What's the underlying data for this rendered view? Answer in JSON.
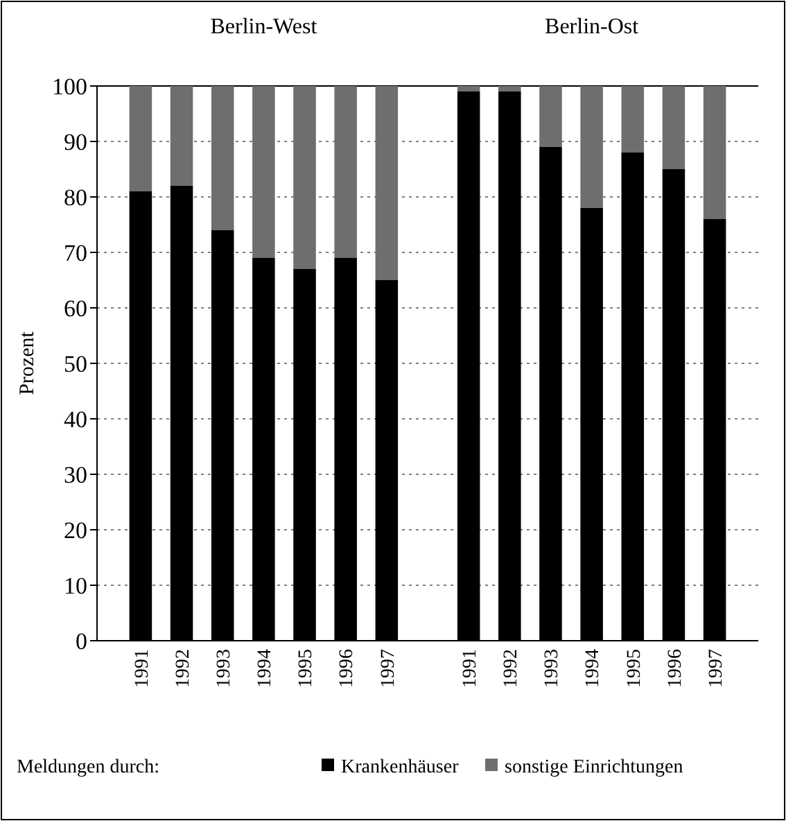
{
  "chart_data": {
    "type": "bar",
    "stacked": true,
    "ylabel": "Prozent",
    "legend_title": "Meldungen durch:",
    "legend": "bottom",
    "grid": "y",
    "categories": [
      "1991",
      "1992",
      "1993",
      "1994",
      "1995",
      "1996",
      "1997",
      null,
      "1991",
      "1992",
      "1993",
      "1994",
      "1995",
      "1996",
      "1997"
    ],
    "series": [
      {
        "name": "Krankenhäuser",
        "color": "#000000",
        "values": [
          81,
          82,
          74,
          69,
          67,
          69,
          65,
          null,
          99,
          99,
          89,
          78,
          88,
          85,
          76
        ]
      },
      {
        "name": "sonstige Einrichtungen",
        "color": "#6e6e6e",
        "values": [
          19,
          18,
          26,
          31,
          33,
          31,
          35,
          null,
          1,
          1,
          11,
          22,
          12,
          15,
          24
        ]
      }
    ],
    "ylim": [
      0,
      100
    ],
    "yticks": [
      0,
      10,
      20,
      30,
      40,
      50,
      60,
      70,
      80,
      90,
      100
    ],
    "annotations": [
      "Berlin-West",
      "Berlin-Ost"
    ]
  }
}
